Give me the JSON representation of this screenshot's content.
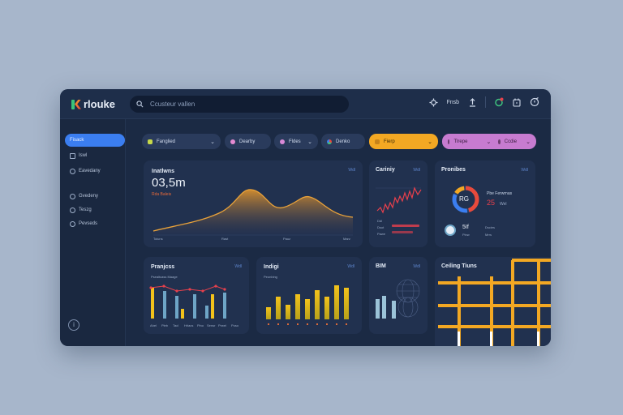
{
  "app": {
    "name": "rlouke"
  },
  "search": {
    "placeholder": "Ccusteur vallen"
  },
  "topbar": {
    "user_label": "Fnsb"
  },
  "sidebar": {
    "items": [
      {
        "label": "Fisack",
        "icon": "home-icon",
        "active": true
      },
      {
        "label": "Iswl",
        "icon": "grid-icon",
        "active": false
      },
      {
        "label": "Eavedany",
        "icon": "settings-icon",
        "active": false
      },
      {
        "label": "Gvedeny",
        "icon": "settings-icon",
        "active": false
      },
      {
        "label": "Teszg",
        "icon": "clock-icon",
        "active": false
      },
      {
        "label": "Pevseds",
        "icon": "chat-icon",
        "active": false
      }
    ],
    "help_icon": "info-icon"
  },
  "filters": [
    {
      "label": "Fanglied",
      "color": "#c7d94a",
      "bg": "#2b3c5e",
      "caret": true
    },
    {
      "label": "Dearby",
      "color": "#e58bd2",
      "bg": "#2b3c5e",
      "caret": false
    },
    {
      "label": "Fldes",
      "color": "#d98ad8",
      "bg": "#2b3c5e",
      "caret": true
    },
    {
      "label": "Denko",
      "color": "#e84a3c",
      "bg": "#2b3c5e",
      "caret": false
    },
    {
      "label": "Fierp",
      "color": "#f3a823",
      "bg": "#f3a823",
      "caret": true
    },
    {
      "label": "Tlrepe",
      "color": "#6b3b6d",
      "bg": "#c77bd0",
      "caret": true,
      "extra": "Ccdie"
    }
  ],
  "cards": {
    "revenue": {
      "title": "Inatlwns",
      "value": "03,5m",
      "sub": "Rda Baleis",
      "link": "Wdl",
      "xticks": [
        "Toiuns",
        "Rast",
        "Pauz",
        "Marz"
      ]
    },
    "carriny": {
      "title": "Cariniy",
      "link": "Wdl",
      "labels": [
        "Ddl",
        "Dsot",
        "Pawe"
      ]
    },
    "pronibes": {
      "title": "Pronibes",
      "link": "Wdl",
      "ring_value": "RG",
      "ring_caption": "Pbe Ferwrnas",
      "big_value": "25",
      "big_caption": "Wel",
      "line2_value": "5If",
      "line2_a": "Pinw",
      "line2_b": "Dscies",
      "line2_c": "Mrrs"
    },
    "pranjcess": {
      "title": "Pranjcss",
      "sub": "Psealtcass Maage",
      "link": "Wdl",
      "xticks": [
        "Ahel",
        "Pleb",
        "Tacl",
        "Hrlacs",
        "Plno",
        "Sensr",
        "Prwel",
        "Puso"
      ]
    },
    "indigh": {
      "title": "Indigi",
      "sub": "Peonbing",
      "link": "Wdl"
    },
    "bim": {
      "title": "BIM",
      "link": "Wdl"
    },
    "ceiling": {
      "title": "Ceiling Tiuns"
    }
  },
  "colors": {
    "accent": "#3b7ef0",
    "orange": "#f3a823",
    "yellow": "#f2c21b",
    "red": "#e8404c",
    "teal": "#6ea5c6"
  }
}
